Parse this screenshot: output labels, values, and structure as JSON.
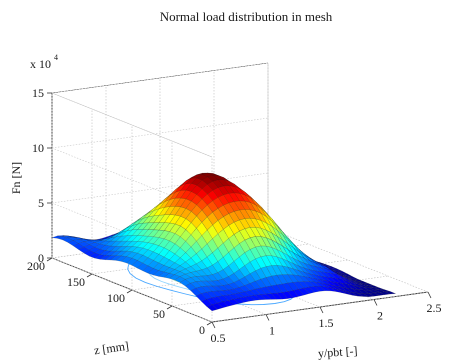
{
  "chart_data": {
    "type": "surface",
    "title": "Normal load distribution in mesh",
    "xlabel": "y/pbt [-]",
    "ylabel": "z [mm]",
    "zlabel": "Fn [N]",
    "z_multiplier_base": "x 10",
    "z_multiplier_exp": "4",
    "x_ticks": [
      "0.5",
      "1",
      "1.5",
      "2",
      "2.5"
    ],
    "y_ticks": [
      "0",
      "50",
      "100",
      "150",
      "200"
    ],
    "z_ticks": [
      "0",
      "5",
      "10",
      "15"
    ],
    "xlim": [
      0.5,
      2.5
    ],
    "ylim": [
      0,
      200
    ],
    "zlim": [
      0,
      15
    ],
    "colormap": "jet",
    "grid": true,
    "contour_projection": true,
    "peak": {
      "x": 1.25,
      "y": 100,
      "z": 9.3
    },
    "surface_extent": {
      "x": [
        0.5,
        2.2
      ],
      "y": [
        0,
        200
      ]
    }
  }
}
